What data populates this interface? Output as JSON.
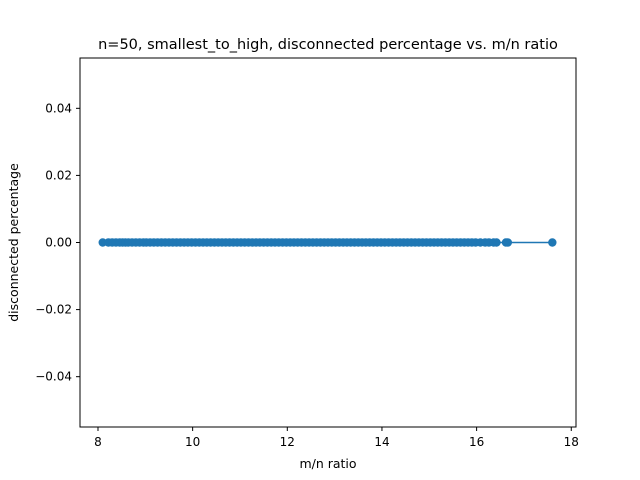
{
  "chart_data": {
    "type": "line",
    "title": "n=50, smallest_to_high, disconnected percentage vs. m/n ratio",
    "xlabel": "m/n ratio",
    "ylabel": "disconnected percentage",
    "xlim": [
      7.62,
      18.1
    ],
    "ylim": [
      -0.055,
      0.055
    ],
    "x_ticks": [
      8,
      10,
      12,
      14,
      16,
      18
    ],
    "x_tick_labels": [
      "8",
      "10",
      "12",
      "14",
      "16",
      "18"
    ],
    "y_ticks": [
      0.04,
      0.02,
      0.0,
      -0.02,
      -0.04
    ],
    "y_tick_labels": [
      "0.04",
      "0.02",
      "0.00",
      "−0.02",
      "−0.04"
    ],
    "grid": false,
    "series": [
      {
        "color": "#1f77b4",
        "marker": "circle",
        "x": [
          8.1,
          8.22,
          8.3,
          8.38,
          8.46,
          8.52,
          8.58,
          8.64,
          8.72,
          8.8,
          8.88,
          8.96,
          9.02,
          9.1,
          9.18,
          9.26,
          9.34,
          9.42,
          9.5,
          9.58,
          9.66,
          9.74,
          9.82,
          9.9,
          9.98,
          10.06,
          10.14,
          10.22,
          10.3,
          10.38,
          10.46,
          10.54,
          10.62,
          10.7,
          10.78,
          10.86,
          10.94,
          11.02,
          11.1,
          11.18,
          11.26,
          11.34,
          11.42,
          11.5,
          11.58,
          11.66,
          11.74,
          11.82,
          11.9,
          11.98,
          12.06,
          12.14,
          12.22,
          12.3,
          12.38,
          12.46,
          12.54,
          12.62,
          12.7,
          12.78,
          12.86,
          12.94,
          13.02,
          13.1,
          13.18,
          13.26,
          13.34,
          13.42,
          13.5,
          13.58,
          13.66,
          13.74,
          13.82,
          13.9,
          13.98,
          14.06,
          14.14,
          14.22,
          14.3,
          14.38,
          14.46,
          14.54,
          14.62,
          14.7,
          14.78,
          14.86,
          14.94,
          15.02,
          15.1,
          15.18,
          15.26,
          15.34,
          15.42,
          15.5,
          15.58,
          15.66,
          15.74,
          15.82,
          15.9,
          15.98,
          16.08,
          16.18,
          16.26,
          16.36,
          16.42,
          16.62,
          16.66,
          17.6
        ],
        "y": [
          0,
          0,
          0,
          0,
          0,
          0,
          0,
          0,
          0,
          0,
          0,
          0,
          0,
          0,
          0,
          0,
          0,
          0,
          0,
          0,
          0,
          0,
          0,
          0,
          0,
          0,
          0,
          0,
          0,
          0,
          0,
          0,
          0,
          0,
          0,
          0,
          0,
          0,
          0,
          0,
          0,
          0,
          0,
          0,
          0,
          0,
          0,
          0,
          0,
          0,
          0,
          0,
          0,
          0,
          0,
          0,
          0,
          0,
          0,
          0,
          0,
          0,
          0,
          0,
          0,
          0,
          0,
          0,
          0,
          0,
          0,
          0,
          0,
          0,
          0,
          0,
          0,
          0,
          0,
          0,
          0,
          0,
          0,
          0,
          0,
          0,
          0,
          0,
          0,
          0,
          0,
          0,
          0,
          0,
          0,
          0,
          0,
          0,
          0,
          0,
          0,
          0,
          0,
          0,
          0,
          0,
          0,
          0
        ]
      }
    ]
  }
}
